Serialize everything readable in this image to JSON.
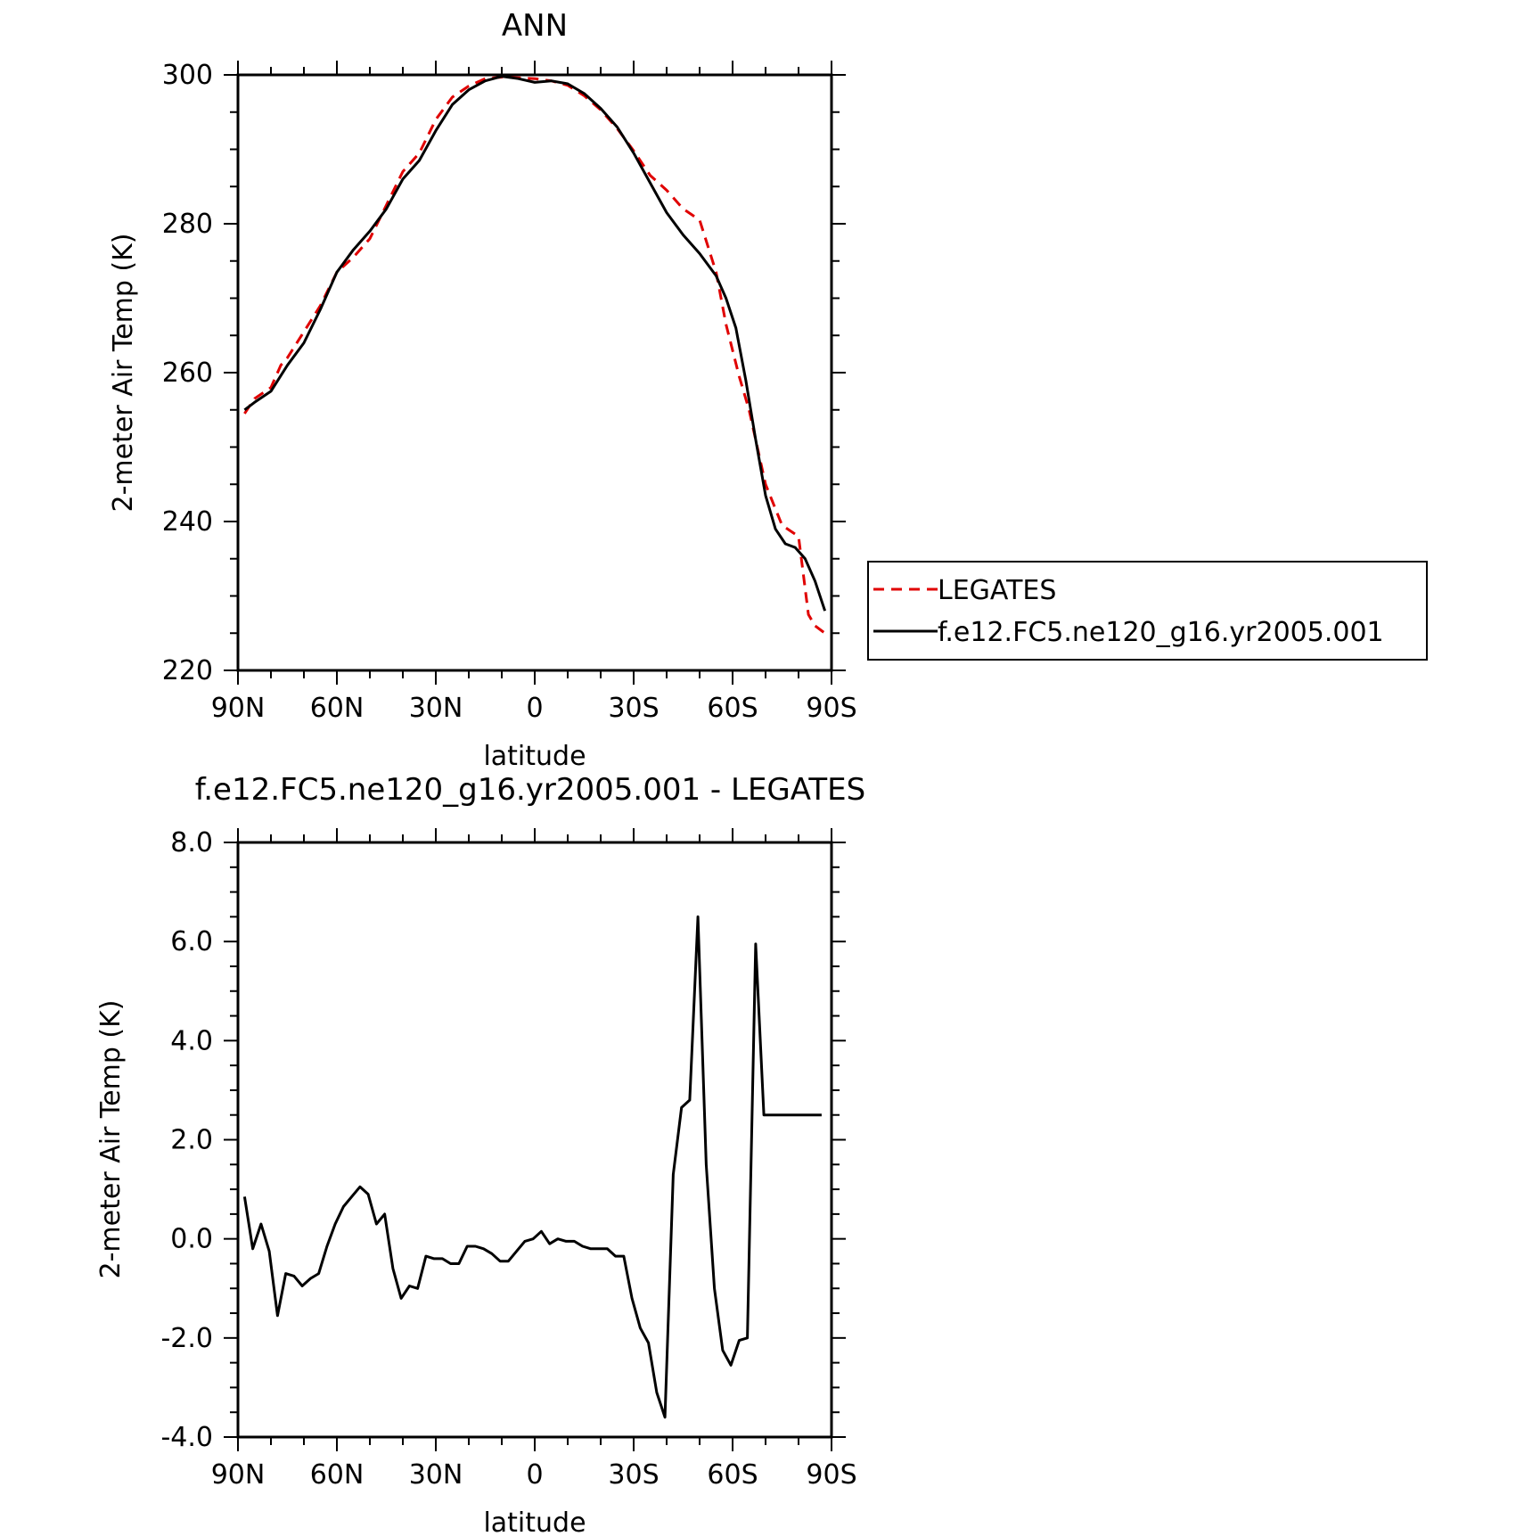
{
  "chart_data": [
    {
      "type": "line",
      "title": "ANN",
      "xlabel": "latitude",
      "ylabel": "2-meter Air Temp (K)",
      "xlim": [
        90,
        -90
      ],
      "ylim": [
        220,
        300
      ],
      "xticks": [
        90,
        60,
        30,
        0,
        -30,
        -60,
        -90
      ],
      "xticklabels": [
        "90N",
        "60N",
        "30N",
        "0",
        "30S",
        "60S",
        "90S"
      ],
      "yticks": [
        220,
        240,
        260,
        280,
        300
      ],
      "yticklabels": [
        "220",
        "240",
        "260",
        "280",
        "300"
      ],
      "grid": false,
      "legend": "right",
      "series": [
        {
          "name": "LEGATES",
          "color": "#e00000",
          "dash": "dashed",
          "x": [
            88,
            85,
            80,
            77,
            75,
            70,
            65,
            60,
            55,
            50,
            45,
            40,
            35,
            30,
            25,
            20,
            15,
            10,
            5,
            0,
            -5,
            -10,
            -15,
            -20,
            -25,
            -30,
            -35,
            -40,
            -45,
            -50,
            -55,
            -58,
            -62,
            -65,
            -70,
            -75,
            -80,
            -83,
            -85,
            -88
          ],
          "y": [
            254.5,
            256.5,
            258,
            261,
            262,
            265.5,
            269,
            273.5,
            275.5,
            278,
            282.5,
            287,
            289.5,
            294,
            297,
            298.5,
            299.5,
            299.7,
            299.6,
            299.5,
            299.2,
            298.6,
            297.2,
            295.3,
            292.8,
            289.8,
            286.5,
            284.5,
            282,
            280.5,
            273.5,
            266.5,
            259.5,
            255,
            245,
            239.5,
            238,
            227.5,
            226,
            225
          ]
        },
        {
          "name": "f.e12.FC5.ne120_g16.yr2005.001",
          "color": "#000000",
          "dash": "solid",
          "x": [
            88,
            85,
            80,
            75,
            70,
            65,
            60,
            55,
            50,
            45,
            40,
            35,
            30,
            25,
            20,
            15,
            10,
            5,
            0,
            -5,
            -10,
            -15,
            -20,
            -25,
            -30,
            -35,
            -40,
            -45,
            -50,
            -55,
            -58,
            -61,
            -64,
            -67,
            -70,
            -73,
            -76,
            -79,
            -82,
            -85,
            -88
          ],
          "y": [
            255,
            256,
            257.5,
            261,
            264,
            268.5,
            273.5,
            276.5,
            279,
            282,
            286,
            288.5,
            292.5,
            296,
            298,
            299.2,
            299.8,
            299.5,
            299,
            299.2,
            298.8,
            297.5,
            295.5,
            293,
            289.5,
            285.5,
            281.5,
            278.5,
            276,
            273,
            270,
            266,
            259,
            251,
            243.5,
            239,
            237,
            236.5,
            235,
            232,
            228
          ]
        }
      ]
    },
    {
      "type": "line",
      "title": "f.e12.FC5.ne120_g16.yr2005.001 - LEGATES",
      "xlabel": "latitude",
      "ylabel": "2-meter Air Temp (K)",
      "xlim": [
        90,
        -90
      ],
      "ylim": [
        -4.0,
        8.0
      ],
      "xticks": [
        90,
        60,
        30,
        0,
        -30,
        -60,
        -90
      ],
      "xticklabels": [
        "90N",
        "60N",
        "30N",
        "0",
        "30S",
        "60S",
        "90S"
      ],
      "yticks": [
        -4,
        -2,
        0,
        2,
        4,
        6,
        8
      ],
      "yticklabels": [
        "-4.0",
        "-2.0",
        "0.0",
        "2.0",
        "4.0",
        "6.0",
        "8.0"
      ],
      "grid": false,
      "series": [
        {
          "color": "#000000",
          "dash": "solid",
          "x": [
            88,
            85.5,
            83,
            80.5,
            78,
            75.5,
            73,
            70.5,
            68,
            65.5,
            63,
            60.5,
            58,
            55.5,
            53,
            50.5,
            48,
            45.5,
            43,
            40.5,
            38,
            35.5,
            33,
            30.5,
            28,
            25.5,
            23,
            20.5,
            18,
            15.5,
            13,
            10.5,
            8,
            5.5,
            3,
            0.5,
            -2,
            -4.5,
            -7,
            -9.5,
            -12,
            -14.5,
            -17,
            -19.5,
            -22,
            -24.5,
            -27,
            -29.5,
            -32,
            -34.5,
            -37,
            -39.5,
            -42,
            -44.5,
            -47,
            -49.5,
            -52,
            -54.5,
            -57,
            -59.5,
            -62,
            -64.5,
            -67,
            -69.5,
            -72,
            -74.5,
            -77,
            -79.5,
            -82,
            -84.5,
            -87
          ],
          "y": [
            0.85,
            -0.2,
            0.3,
            -0.25,
            -1.55,
            -0.7,
            -0.75,
            -0.95,
            -0.8,
            -0.7,
            -0.15,
            0.3,
            0.65,
            0.85,
            1.05,
            0.9,
            0.3,
            0.5,
            -0.6,
            -1.2,
            -0.95,
            -1.0,
            -0.35,
            -0.4,
            -0.4,
            -0.5,
            -0.5,
            -0.15,
            -0.15,
            -0.2,
            -0.3,
            -0.45,
            -0.45,
            -0.25,
            -0.05,
            0.0,
            0.15,
            -0.1,
            0.0,
            -0.05,
            -0.05,
            -0.15,
            -0.2,
            -0.2,
            -0.2,
            -0.35,
            -0.35,
            -1.2,
            -1.8,
            -2.1,
            -3.1,
            -3.6,
            1.3,
            2.65,
            2.8,
            6.5,
            1.5,
            -1.0,
            -2.25,
            -2.55,
            -2.05,
            -2.0,
            5.95,
            2.5,
            2.5,
            2.5,
            2.5,
            2.5,
            2.5,
            2.5,
            2.5
          ]
        }
      ]
    }
  ],
  "legend": {
    "entries": [
      "LEGATES",
      "f.e12.FC5.ne120_g16.yr2005.001"
    ]
  }
}
